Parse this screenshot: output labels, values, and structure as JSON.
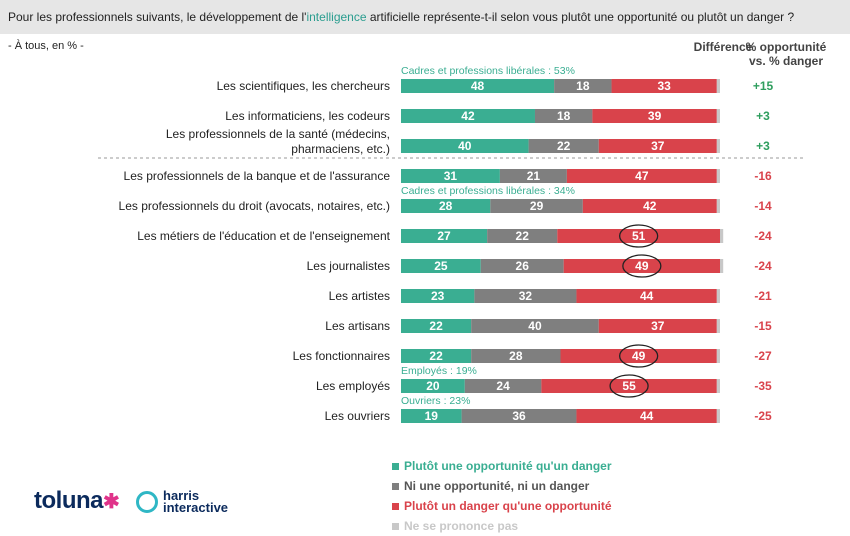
{
  "question": {
    "before": "Pour les professionnels suivants, le développement de l'",
    "highlight": "intelligence",
    "after": " artificielle représente-t-il selon vous plutôt une opportunité ou plutôt un danger ?"
  },
  "base": "- À tous, en % -",
  "header": {
    "col1": "Différence",
    "col2_line1": "% opportunité",
    "col2_line2": "vs. % danger"
  },
  "colors": {
    "opportunity": "#3aae92",
    "neutral": "#7f7f7f",
    "danger": "#d9434b",
    "nsp": "#c8c8c8",
    "diff_pos": "#2f9e5e",
    "diff_neg": "#d9434b"
  },
  "chart_data": {
    "type": "bar",
    "stacked": true,
    "orientation": "horizontal",
    "categories": [
      "Les scientifiques, les chercheurs",
      "Les informaticiens, les codeurs",
      "Les professionnels de la santé (médecins, pharmaciens, etc.)",
      "Les professionnels de la banque et de l'assurance",
      "Les professionnels du droit (avocats, notaires, etc.)",
      "Les métiers de l'éducation et de l'enseignement",
      "Les journalistes",
      "Les artistes",
      "Les artisans",
      "Les fonctionnaires",
      "Les employés",
      "Les ouvriers"
    ],
    "series": [
      {
        "name": "Plutôt une opportunité qu'un danger",
        "values": [
          48,
          42,
          40,
          31,
          28,
          27,
          25,
          23,
          22,
          22,
          20,
          19
        ]
      },
      {
        "name": "Ni une opportunité, ni un danger",
        "values": [
          18,
          18,
          22,
          21,
          29,
          22,
          26,
          32,
          40,
          28,
          24,
          36
        ]
      },
      {
        "name": "Plutôt un danger qu'une opportunité",
        "values": [
          33,
          39,
          37,
          47,
          42,
          51,
          49,
          44,
          37,
          49,
          55,
          44
        ]
      },
      {
        "name": "Ne se prononce pas",
        "values": [
          1,
          1,
          1,
          1,
          1,
          1,
          1,
          1,
          1,
          1,
          1,
          1
        ]
      }
    ],
    "differences": [
      "+15",
      "+3",
      "+3",
      "-16",
      "-14",
      "-24",
      "-24",
      "-21",
      "-15",
      "-27",
      "-35",
      "-25"
    ],
    "circled_danger": [
      false,
      false,
      false,
      false,
      false,
      true,
      true,
      false,
      false,
      true,
      true,
      false
    ],
    "annotations": [
      {
        "row": 0,
        "text": "Cadres et professions libérales : 53%"
      },
      {
        "row": 4,
        "text": "Cadres et professions libérales : 34%"
      },
      {
        "row": 10,
        "text": "Employés : 19%"
      },
      {
        "row": 11,
        "text": "Ouvriers : 23%"
      }
    ],
    "separator_after_row": 2
  },
  "legend": [
    "Plutôt une opportunité qu'un danger",
    "Ni une opportunité, ni un danger",
    "Plutôt un danger qu'une opportunité",
    "Ne se prononce pas"
  ],
  "logos": {
    "toluna": "toluna",
    "harris_line1": "harris",
    "harris_line2": "interactive"
  }
}
